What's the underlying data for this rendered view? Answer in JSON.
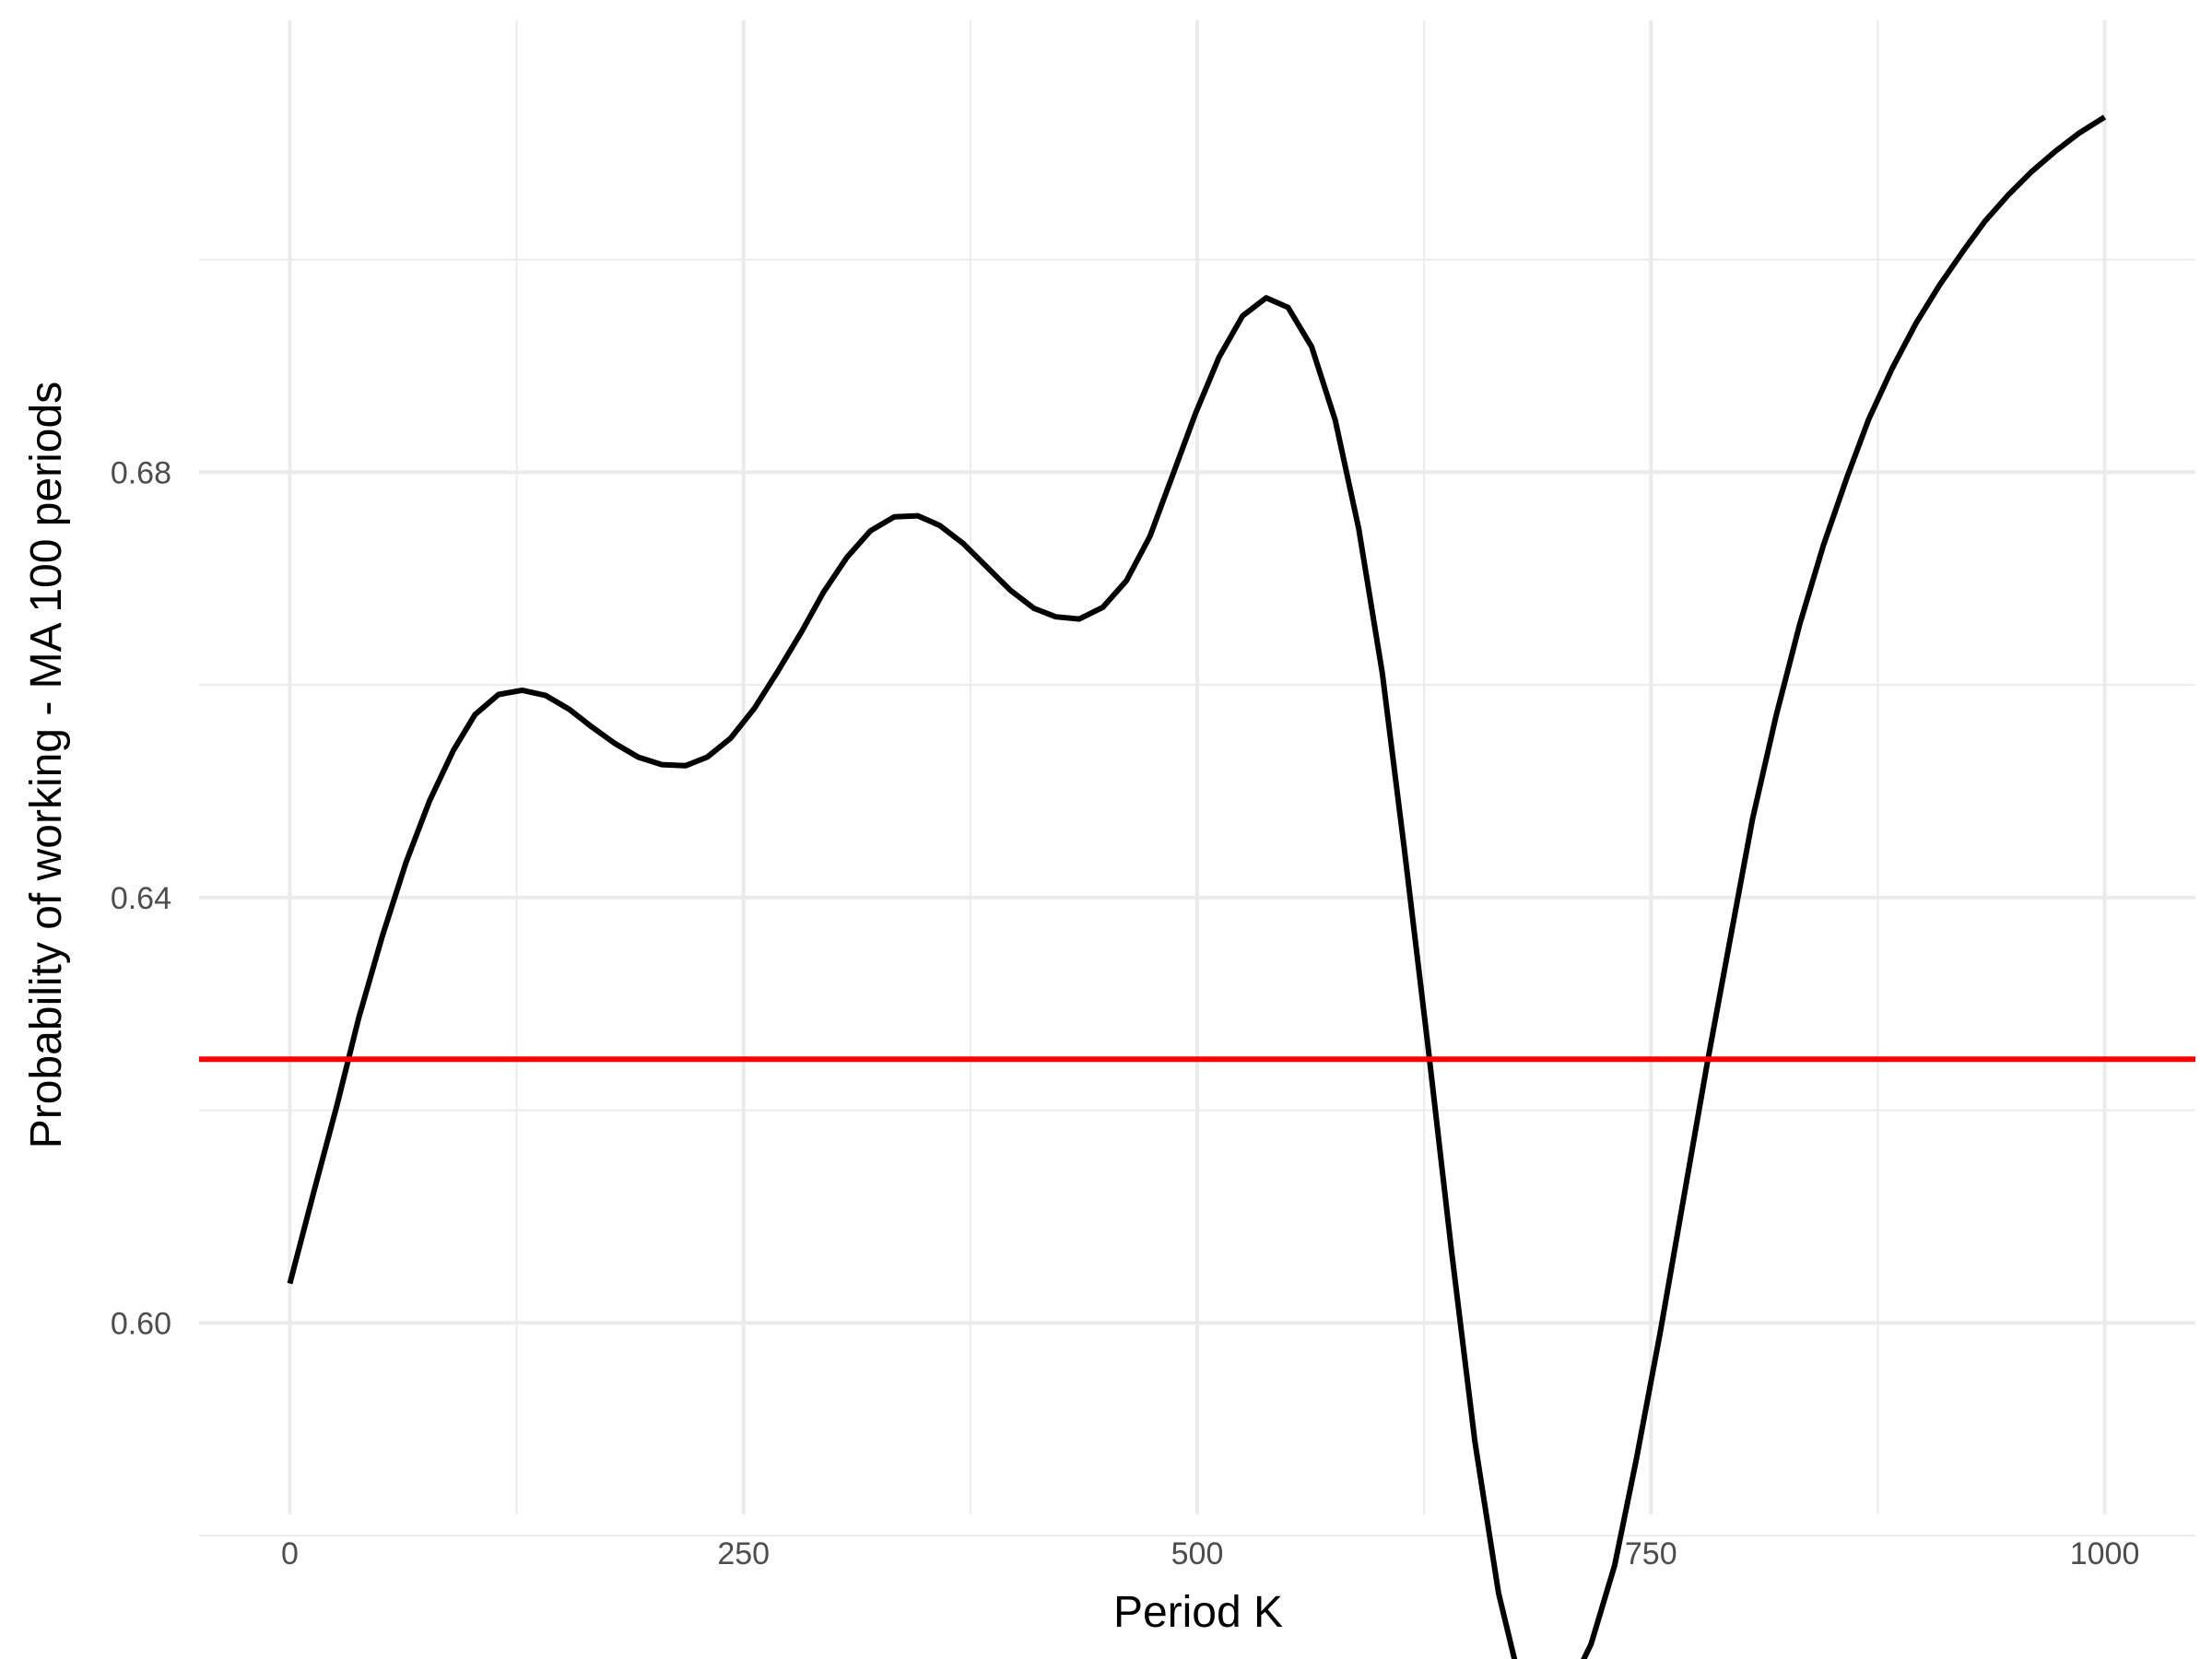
{
  "chart_data": {
    "type": "line",
    "title": "",
    "xlabel": "Period K",
    "ylabel": "Probability of working - MA 100 periods",
    "xlim": [
      -50,
      1050
    ],
    "ylim": [
      0.582,
      0.7225
    ],
    "x_ticks": [
      0,
      250,
      500,
      750,
      1000
    ],
    "x_tick_labels": [
      "0",
      "250",
      "500",
      "750",
      "1000"
    ],
    "x_minor_ticks": [
      125,
      375,
      625,
      875
    ],
    "y_ticks": [
      0.6,
      0.64,
      0.68
    ],
    "y_tick_labels": [
      "0.60",
      "0.64",
      "0.68"
    ],
    "y_minor_ticks": [
      0.58,
      0.62,
      0.66,
      0.7
    ],
    "grid": true,
    "legend": "none",
    "colors": {
      "line": "#000000",
      "hline": "#ff0000",
      "grid": "#ebebeb",
      "tick_text": "#4d4d4d"
    },
    "hline": {
      "y": 0.6248
    },
    "series": [
      {
        "x": [
          0,
          13,
          26,
          38,
          51,
          64,
          77,
          90,
          102,
          115,
          128,
          141,
          154,
          166,
          179,
          192,
          205,
          218,
          230,
          243,
          256,
          269,
          282,
          294,
          307,
          320,
          333,
          346,
          358,
          371,
          384,
          397,
          410,
          422,
          435,
          448,
          461,
          474,
          486,
          499,
          512,
          525,
          538,
          550,
          563,
          576,
          589,
          602,
          614,
          627,
          640,
          653,
          666,
          678,
          691,
          704,
          717,
          730,
          742,
          755,
          768,
          781,
          794,
          806,
          819,
          832,
          845,
          858,
          870,
          883,
          896,
          909,
          922,
          934,
          947,
          960,
          973,
          986,
          1000
        ],
        "y": [
          0.6037,
          0.6122,
          0.6205,
          0.6287,
          0.6364,
          0.6433,
          0.6491,
          0.6538,
          0.6572,
          0.6591,
          0.6595,
          0.659,
          0.6577,
          0.6561,
          0.6545,
          0.6532,
          0.6525,
          0.6524,
          0.6532,
          0.655,
          0.6578,
          0.6613,
          0.665,
          0.6687,
          0.672,
          0.6745,
          0.6758,
          0.6759,
          0.675,
          0.6733,
          0.6711,
          0.6689,
          0.6672,
          0.6664,
          0.6662,
          0.6673,
          0.6698,
          0.674,
          0.6795,
          0.6855,
          0.6908,
          0.6947,
          0.6964,
          0.6955,
          0.6918,
          0.6849,
          0.6747,
          0.6611,
          0.6447,
          0.6262,
          0.6069,
          0.5888,
          0.5746,
          0.5661,
          0.5636,
          0.5652,
          0.5698,
          0.5772,
          0.5872,
          0.599,
          0.6117,
          0.6244,
          0.6364,
          0.6474,
          0.6571,
          0.6657,
          0.6731,
          0.6795,
          0.685,
          0.6898,
          0.694,
          0.6976,
          0.7008,
          0.7036,
          0.7061,
          0.7083,
          0.7102,
          0.7119,
          0.7134
        ]
      }
    ]
  }
}
